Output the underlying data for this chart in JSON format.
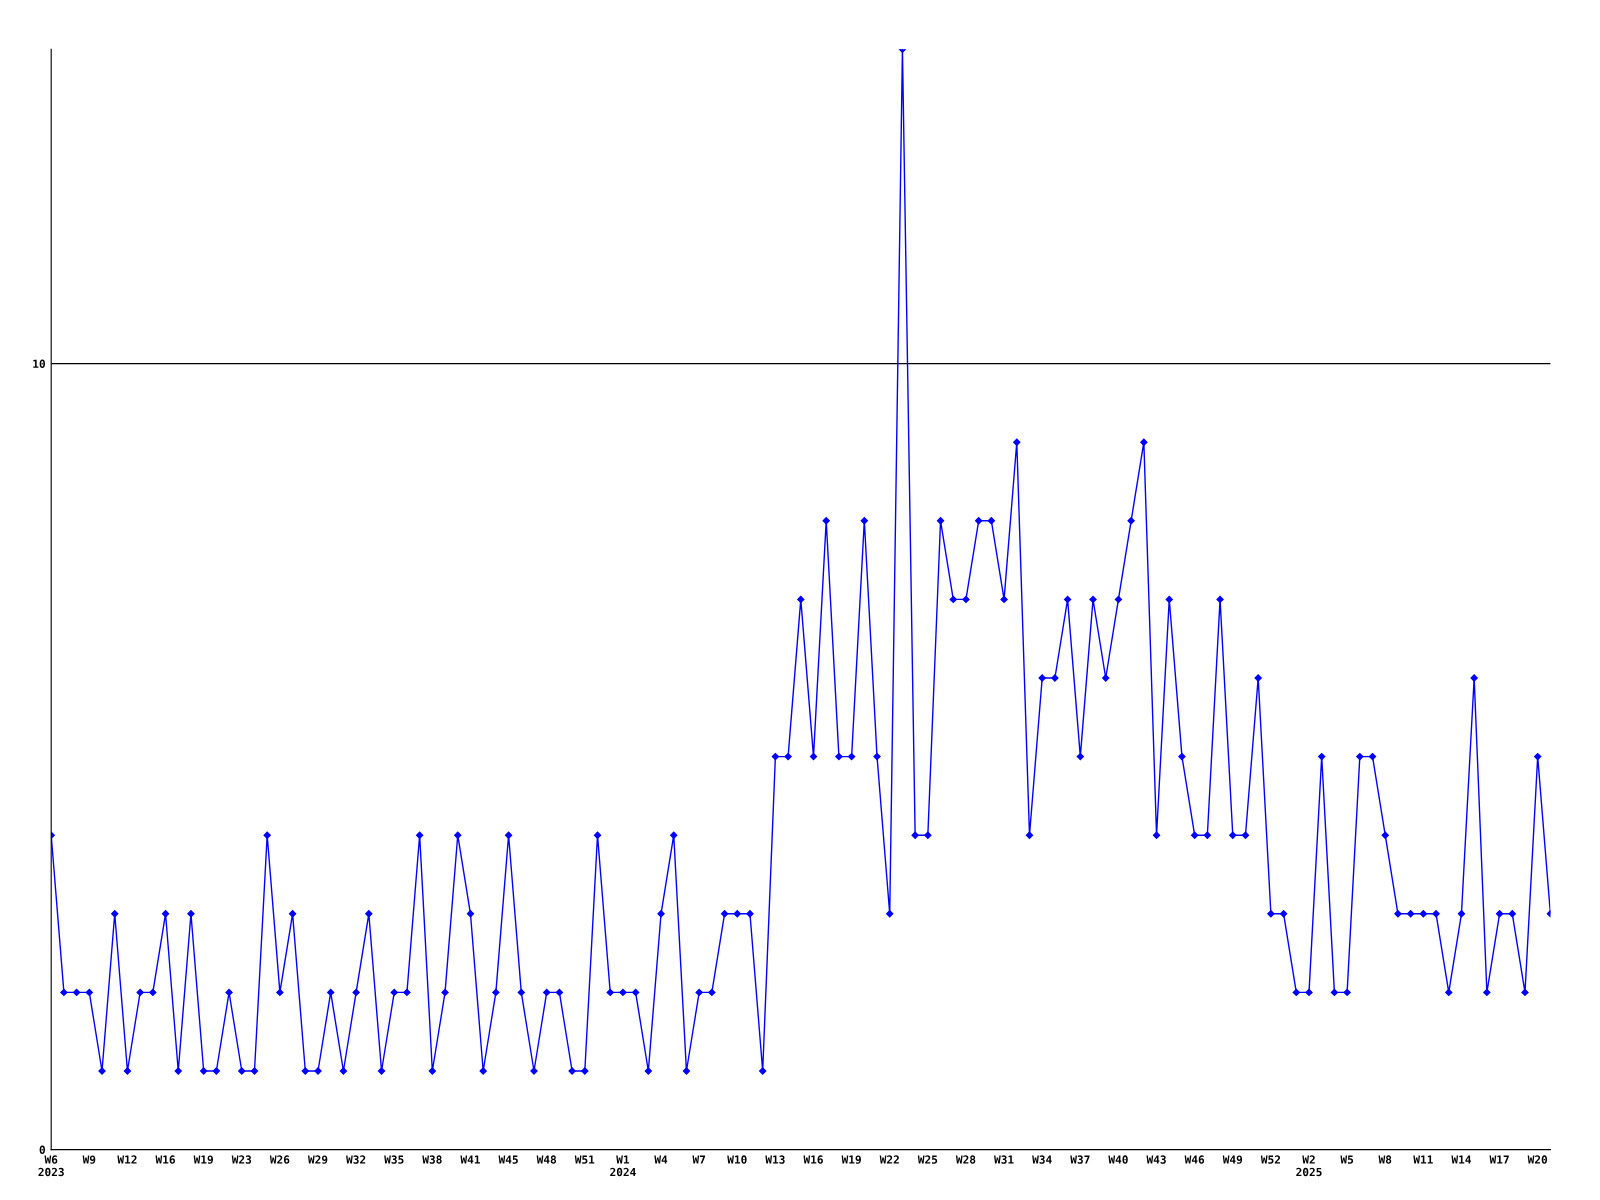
{
  "chart_data": {
    "type": "line",
    "categories": [
      "W6\n2023",
      null,
      null,
      "W9",
      null,
      null,
      "W12",
      null,
      null,
      "W16",
      null,
      null,
      "W19",
      null,
      null,
      "W23",
      null,
      null,
      "W26",
      null,
      null,
      "W29",
      null,
      null,
      "W32",
      null,
      null,
      "W35",
      null,
      null,
      "W38",
      null,
      null,
      "W41",
      null,
      null,
      "W45",
      null,
      null,
      "W48",
      null,
      null,
      "W51",
      null,
      null,
      "W1\n2024",
      null,
      null,
      "W4",
      null,
      null,
      "W7",
      null,
      null,
      "W10",
      null,
      null,
      "W13",
      null,
      null,
      "W16",
      null,
      null,
      "W19",
      null,
      null,
      "W22",
      null,
      null,
      "W25",
      null,
      null,
      "W28",
      null,
      null,
      "W31",
      null,
      null,
      "W34",
      null,
      null,
      "W37",
      null,
      null,
      "W40",
      null,
      null,
      "W43",
      null,
      null,
      "W46",
      null,
      null,
      "W49",
      null,
      null,
      "W52",
      null,
      null,
      "W2\n2025",
      null,
      null,
      "W5",
      null,
      null,
      "W8",
      null,
      null,
      "W11",
      null,
      null,
      "W14",
      null,
      null,
      "W17",
      null,
      null,
      "W20",
      null
    ],
    "series": [
      {
        "color": "#0000ff",
        "values": [
          4,
          2,
          2,
          2,
          1,
          3,
          1,
          2,
          2,
          3,
          1,
          3,
          1,
          1,
          2,
          1,
          1,
          4,
          2,
          3,
          1,
          1,
          2,
          1,
          2,
          3,
          1,
          2,
          2,
          4,
          1,
          2,
          4,
          3,
          1,
          2,
          4,
          2,
          1,
          2,
          2,
          1,
          1,
          4,
          2,
          2,
          2,
          1,
          3,
          4,
          1,
          2,
          2,
          3,
          3,
          3,
          1,
          5,
          5,
          7,
          5,
          8,
          5,
          5,
          8,
          5,
          3,
          14,
          4,
          4,
          8,
          7,
          7,
          8,
          8,
          7,
          9,
          4,
          6,
          6,
          7,
          5,
          7,
          6,
          7,
          8,
          9,
          4,
          7,
          5,
          4,
          4,
          7,
          4,
          4,
          6,
          3,
          3,
          2,
          2,
          5,
          2,
          2,
          5,
          5,
          4,
          3,
          3,
          3,
          3,
          2,
          3,
          6,
          2,
          3,
          3,
          2,
          5,
          3
        ]
      }
    ],
    "ylim": [
      0,
      14
    ],
    "yticks": [
      0,
      10
    ],
    "grid": "y",
    "marker": "diamond",
    "line_style": "solid"
  }
}
